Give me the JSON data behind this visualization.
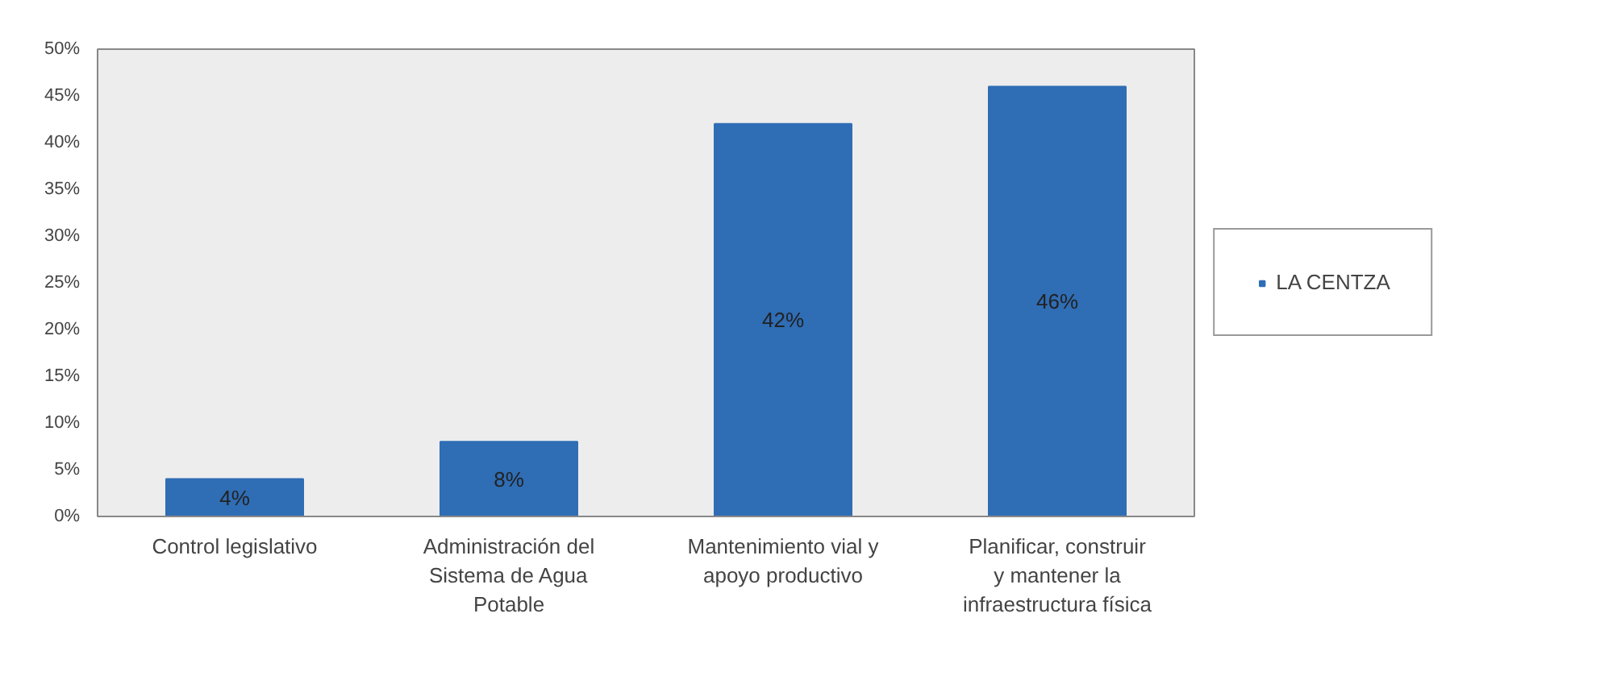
{
  "chart_data": {
    "type": "bar",
    "categories": [
      "Control legislativo",
      "Administración del Sistema de Agua Potable",
      "Mantenimiento vial y apoyo productivo",
      "Planificar, construir y mantener la infraestructura física"
    ],
    "series": [
      {
        "name": "LA CENTZA",
        "color": "#2f6db5",
        "values": [
          4,
          8,
          42,
          46
        ],
        "value_labels": [
          "4%",
          "8%",
          "42%",
          "46%"
        ]
      }
    ],
    "ylim": [
      0,
      50
    ],
    "yticks": [
      {
        "value": 0,
        "label": "0%"
      },
      {
        "value": 5,
        "label": "5%"
      },
      {
        "value": 10,
        "label": "10%"
      },
      {
        "value": 15,
        "label": "15%"
      },
      {
        "value": 20,
        "label": "20%"
      },
      {
        "value": 25,
        "label": "25%"
      },
      {
        "value": 30,
        "label": "30%"
      },
      {
        "value": 35,
        "label": "35%"
      },
      {
        "value": 40,
        "label": "40%"
      },
      {
        "value": 45,
        "label": "45%"
      },
      {
        "value": 50,
        "label": "50%"
      }
    ],
    "grid": false,
    "legend": "right"
  }
}
